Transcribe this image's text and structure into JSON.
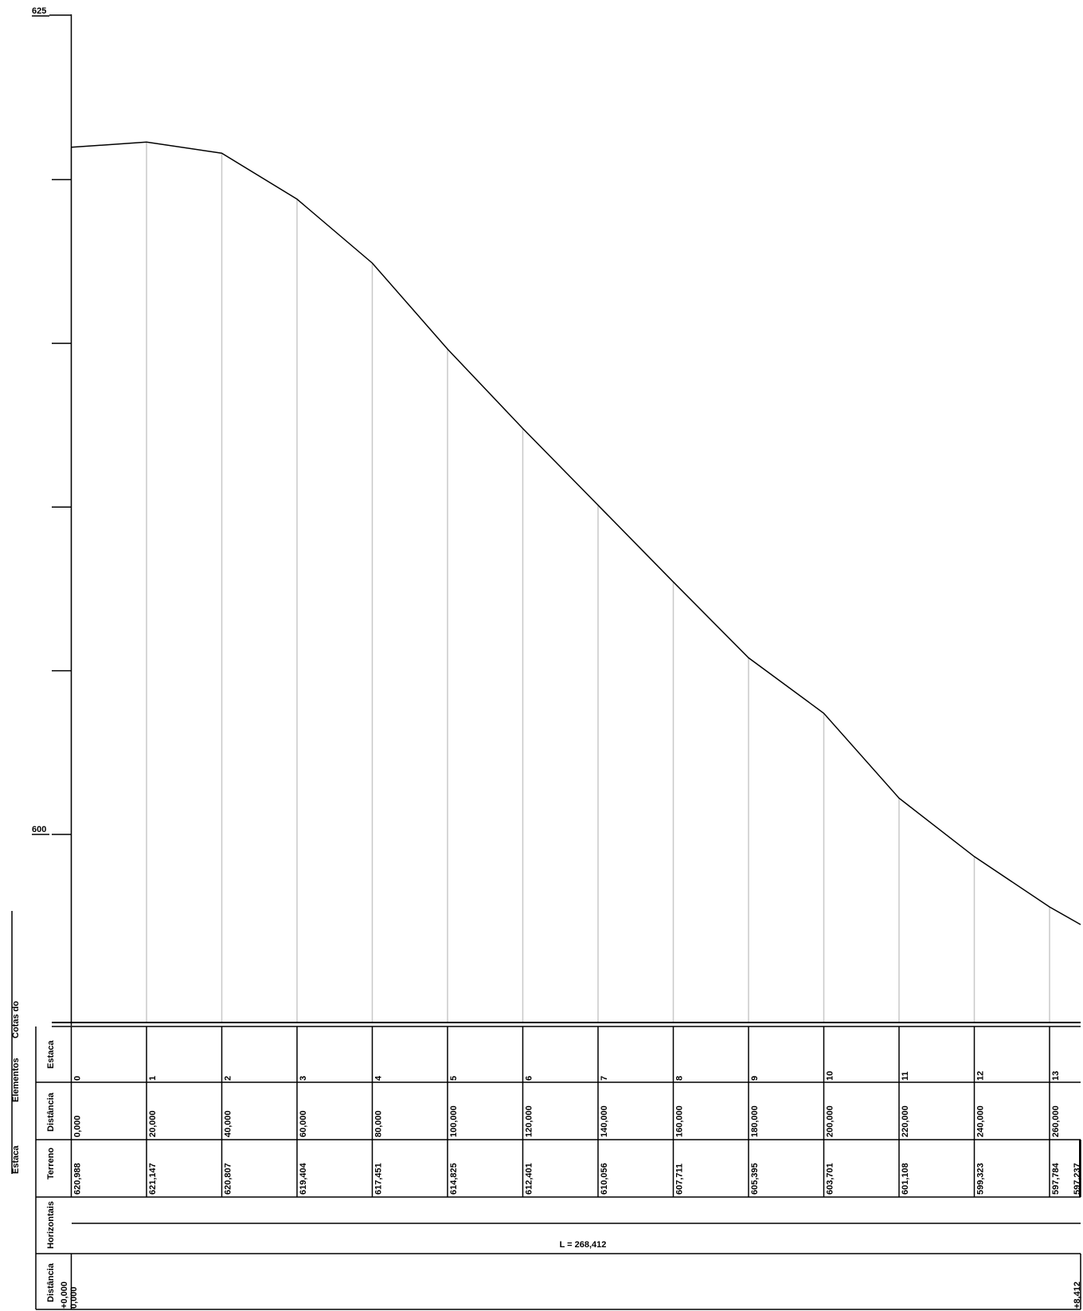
{
  "chart_data": {
    "type": "line",
    "y_scale_labels": {
      "top": "625",
      "bottom": "600"
    },
    "stations": [
      "0",
      "1",
      "2",
      "3",
      "4",
      "5",
      "6",
      "7",
      "8",
      "9",
      "10",
      "11",
      "12",
      "13"
    ],
    "distances": [
      "0,000",
      "20,000",
      "40,000",
      "60,000",
      "80,000",
      "100,000",
      "120,000",
      "140,000",
      "160,000",
      "180,000",
      "200,000",
      "220,000",
      "240,000",
      "260,000"
    ],
    "terrain_labels": [
      "620,988",
      "621,147",
      "620,807",
      "619,404",
      "617,451",
      "614,825",
      "612,401",
      "610,056",
      "607,711",
      "605,395",
      "603,701",
      "601,108",
      "599,323",
      "597,784",
      "597,237"
    ],
    "x": [
      0,
      20,
      40,
      60,
      80,
      100,
      120,
      140,
      160,
      180,
      200,
      220,
      240,
      260,
      268.412
    ],
    "y": [
      620.988,
      621.147,
      620.807,
      619.404,
      617.451,
      614.825,
      612.401,
      610.056,
      607.711,
      605.395,
      603.701,
      601.108,
      599.323,
      597.784,
      597.237
    ],
    "ylim": [
      597.3,
      625
    ]
  },
  "legend": {
    "estaca": "Estaca",
    "elementos": "Elementos",
    "cotas_do": "Cotas do",
    "row_estaca": "Estaca",
    "row_distancia": "Distância",
    "row_terreno": "Terreno",
    "row_horizontais": "Horizontais",
    "row_distancia2": "Distância"
  },
  "horizontal": {
    "length_label": "L = 268,412"
  },
  "bottom_distance": {
    "start_top": "+0,000",
    "start_bottom": "0,000",
    "end": "+8,412"
  }
}
